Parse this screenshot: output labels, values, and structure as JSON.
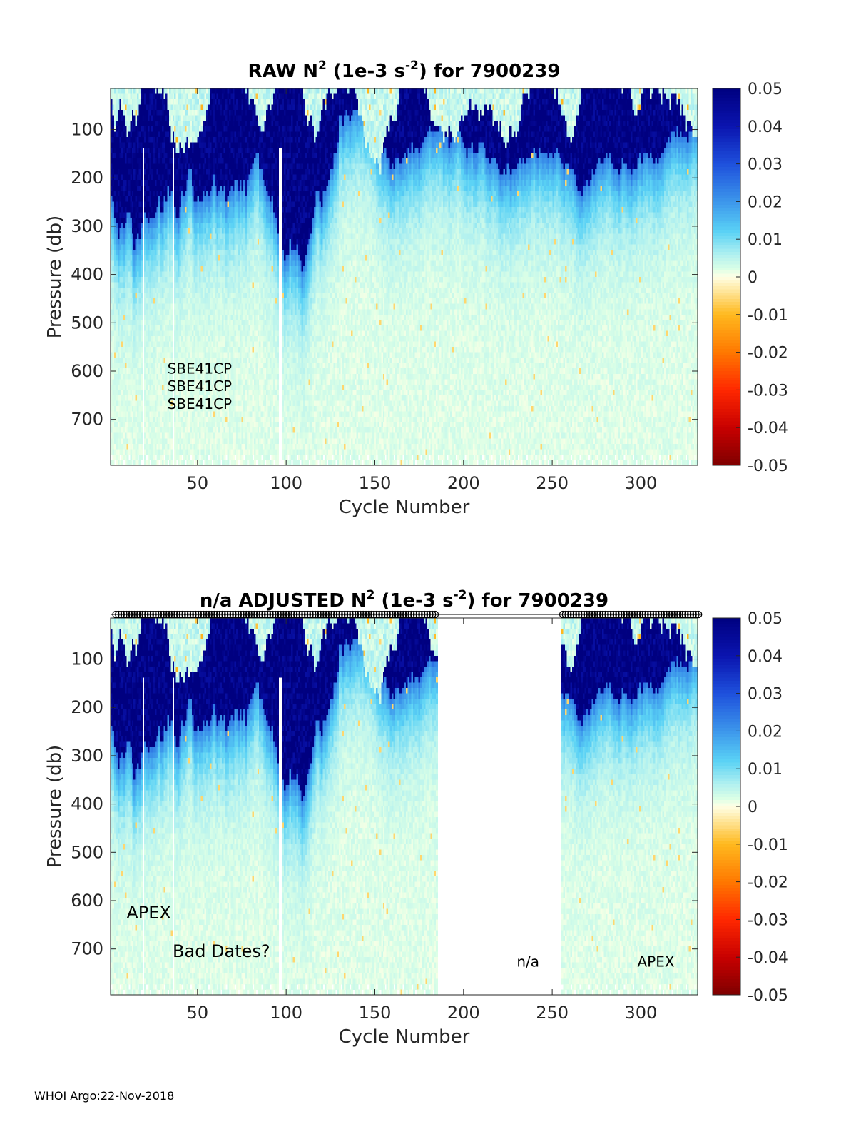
{
  "footer": "WHOI Argo:22-Nov-2018",
  "chart_data": [
    {
      "type": "heatmap",
      "title": "RAW N² (1e-3 s⁻²) for 7900239",
      "title_parts": {
        "main": "RAW N",
        "sup1": "2",
        "mid": " (1e-3 s",
        "sup2": "-2",
        "end": ") for 7900239"
      },
      "xlabel": "Cycle Number",
      "ylabel": "Pressure (db)",
      "xlim": [
        1,
        332
      ],
      "ylim": [
        15,
        795
      ],
      "y_reversed": true,
      "xticks": [
        50,
        100,
        150,
        200,
        250,
        300
      ],
      "yticks": [
        100,
        200,
        300,
        400,
        500,
        600,
        700
      ],
      "colorbar": {
        "min": -0.05,
        "max": 0.05,
        "ticks": [
          "0.05",
          "0.04",
          "0.03",
          "0.02",
          "0.01",
          "0",
          "-0.01",
          "-0.02",
          "-0.03",
          "-0.04",
          "-0.05"
        ]
      },
      "annotations": [
        {
          "text": "SBE41CP",
          "x": 33,
          "y": 605
        },
        {
          "text": "SBE41CP",
          "x": 33,
          "y": 641
        },
        {
          "text": "SBE41CP",
          "x": 33,
          "y": 678
        }
      ],
      "data_gaps": [],
      "surface_n2_max": 0.05,
      "deep_n2": 0.002
    },
    {
      "type": "heatmap",
      "title": "n/a ADJUSTED N² (1e-3 s⁻²) for 7900239",
      "title_parts": {
        "main": "n/a  ADJUSTED N",
        "sup1": "2",
        "mid": " (1e-3 s",
        "sup2": "-2",
        "end": ") for 7900239"
      },
      "xlabel": "Cycle Number",
      "ylabel": "Pressure (db)",
      "xlim": [
        1,
        332
      ],
      "ylim": [
        15,
        795
      ],
      "y_reversed": true,
      "xticks": [
        50,
        100,
        150,
        200,
        250,
        300
      ],
      "yticks": [
        100,
        200,
        300,
        400,
        500,
        600,
        700
      ],
      "colorbar": {
        "min": -0.05,
        "max": 0.05,
        "ticks": [
          "0.05",
          "0.04",
          "0.03",
          "0.02",
          "0.01",
          "0",
          "-0.01",
          "-0.02",
          "-0.03",
          "-0.04",
          "-0.05"
        ]
      },
      "annotations": [
        {
          "text": "APEX",
          "x": 10,
          "y": 637,
          "size": "large"
        },
        {
          "text": "Bad Dates?",
          "x": 36,
          "y": 717,
          "size": "large"
        },
        {
          "text": "n/a",
          "x": 230,
          "y": 737,
          "size": "small"
        },
        {
          "text": "APEX",
          "x": 298,
          "y": 737,
          "size": "small"
        }
      ],
      "data_gaps": [
        [
          186,
          256
        ]
      ],
      "bad_date_markers": {
        "ranges": [
          [
            4,
            185
          ],
          [
            256,
            333
          ]
        ],
        "symbol": "o"
      },
      "surface_n2_max": 0.05,
      "deep_n2": 0.002
    }
  ]
}
